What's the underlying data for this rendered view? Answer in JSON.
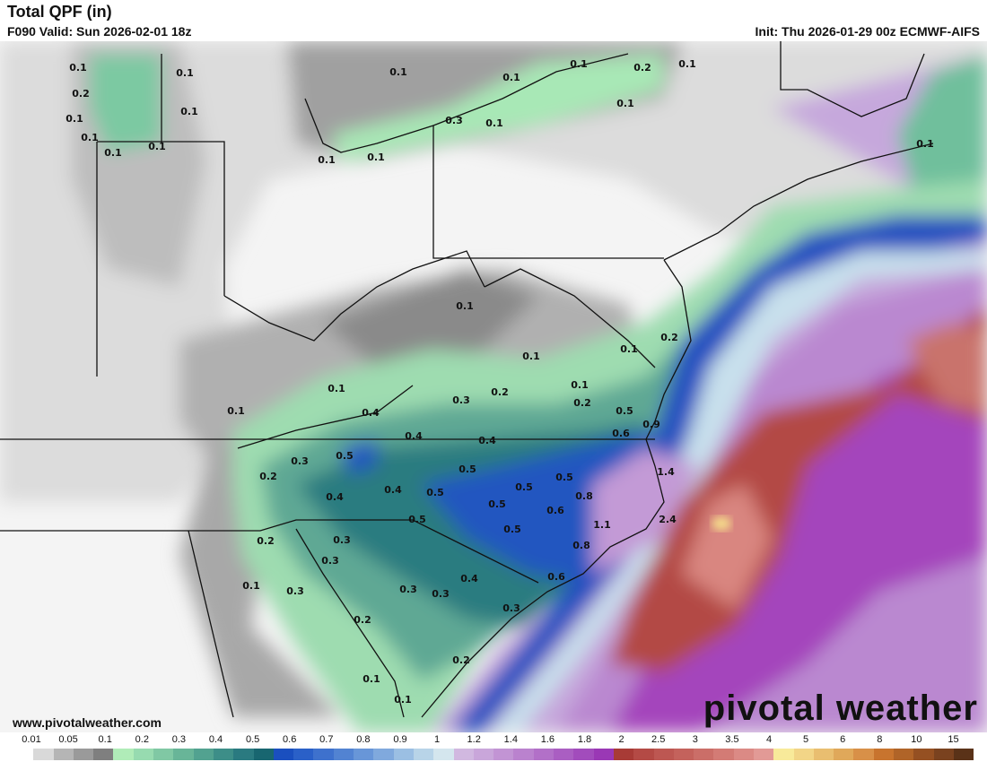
{
  "header": {
    "title": "Total QPF (in)",
    "valid": "F090 Valid: Sun 2026-02-01 18z",
    "init": "Init: Thu 2026-01-29 00z ECMWF-AIFS"
  },
  "footer": {
    "website": "www.pivotalweather.com",
    "brand": "pivotal weather"
  },
  "colorbar": {
    "labels": [
      "0.01",
      "0.05",
      "0.1",
      "0.2",
      "0.3",
      "0.4",
      "0.5",
      "0.6",
      "0.7",
      "0.8",
      "0.9",
      "1",
      "1.2",
      "1.4",
      "1.6",
      "1.8",
      "2",
      "2.5",
      "3",
      "3.5",
      "4",
      "5",
      "6",
      "8",
      "10",
      "15"
    ],
    "colors": [
      "#ffffff",
      "#d9d9d9",
      "#b5b5b5",
      "#9a9a9a",
      "#7f7f7f",
      "#b0ecb8",
      "#97dbb0",
      "#80c8a4",
      "#68b598",
      "#52a290",
      "#3d8e88",
      "#2a7a80",
      "#186670",
      "#1a4fbf",
      "#2a60c8",
      "#3e71cd",
      "#5283d2",
      "#6896d8",
      "#80a9dd",
      "#9bbfe3",
      "#b8d4e8",
      "#d4e6ee",
      "#d1b8e0",
      "#c9a6da",
      "#c294d4",
      "#ba82ce",
      "#b270c8",
      "#aa5ec2",
      "#a24cbc",
      "#9a38b5",
      "#a83b36",
      "#b44a45",
      "#bd5752",
      "#c4625c",
      "#cb6e68",
      "#d37b75",
      "#db8a85",
      "#e29a96",
      "#f8ea9a",
      "#f2d587",
      "#e9be70",
      "#e0a85a",
      "#d89048",
      "#c8742e",
      "#b06428",
      "#955022",
      "#7a421f",
      "#5a3218"
    ]
  },
  "map": {
    "value_labels": [
      "0.1",
      "0.1",
      "0.2",
      "0.1",
      "0.1",
      "0.1",
      "0.1",
      "0.1",
      "0.1",
      "0.1",
      "0.1",
      "0.2",
      "0.1",
      "0.1",
      "0.3",
      "0.1",
      "0.1",
      "0.1",
      "0.1",
      "0.1",
      "0.2",
      "0.1",
      "0.1",
      "0.1",
      "0.2",
      "0.3",
      "0.2",
      "0.1",
      "0.1",
      "0.4",
      "0.5",
      "0.9",
      "0.6",
      "0.4",
      "0.4",
      "0.5",
      "0.3",
      "0.2",
      "0.5",
      "0.5",
      "0.4",
      "0.4",
      "0.5",
      "0.5",
      "0.8",
      "0.5",
      "0.6",
      "1.4",
      "0.5",
      "0.5",
      "1.1",
      "2.4",
      "0.8",
      "0.2",
      "0.3",
      "0.3",
      "0.6",
      "0.4",
      "0.3",
      "0.3",
      "0.1",
      "0.3",
      "0.3",
      "0.2",
      "0.2",
      "0.1",
      "0.1"
    ]
  }
}
